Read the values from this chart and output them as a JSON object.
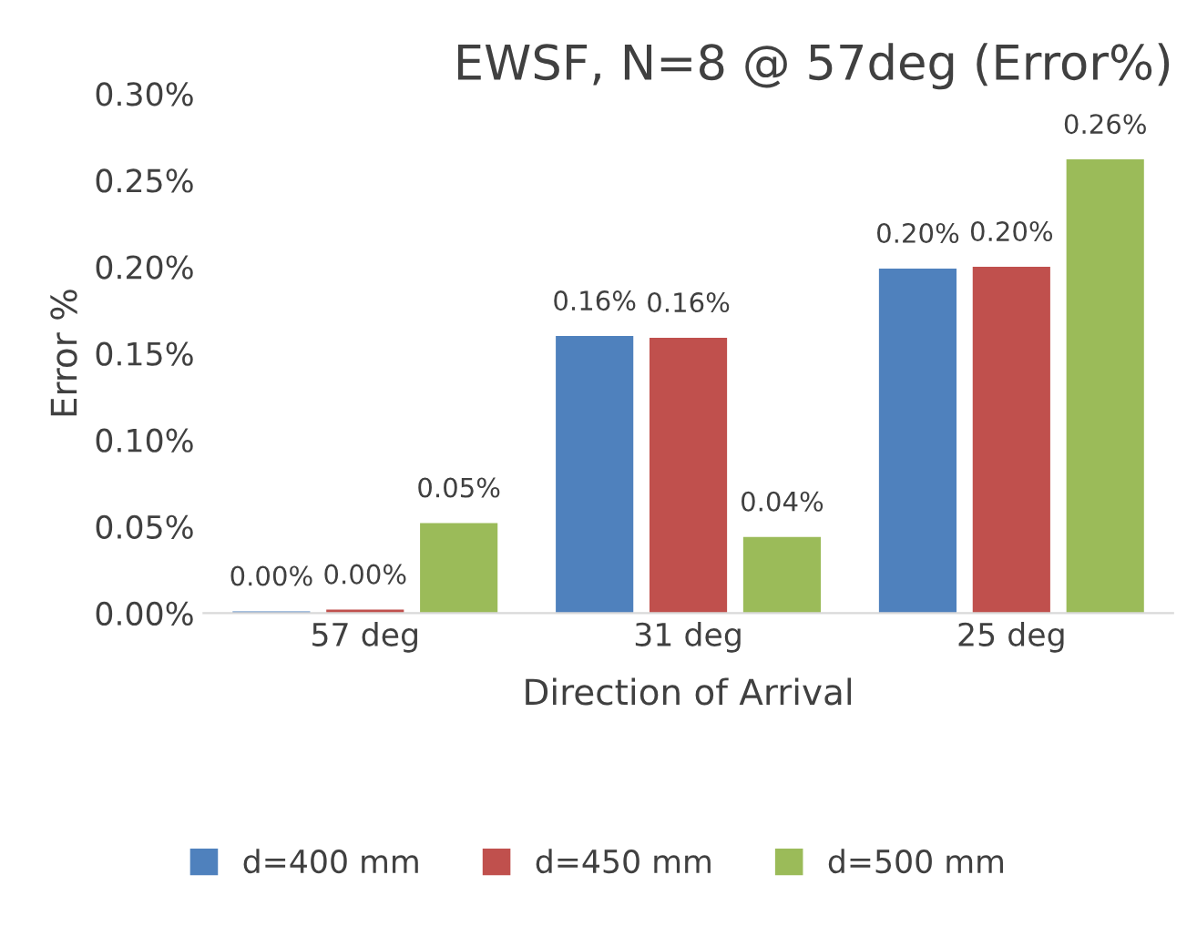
{
  "chart_data": {
    "type": "bar",
    "title": "EWSF, N=8 @ 57deg (Error%)",
    "xlabel": "Direction of Arrival",
    "ylabel": "Error %",
    "categories": [
      "57 deg",
      "31 deg",
      "25 deg"
    ],
    "series": [
      {
        "name": "d=400 mm",
        "color": "#4f81bd",
        "values": [
          0.001,
          0.16,
          0.199
        ],
        "value_labels": [
          "0.00%",
          "0.16%",
          "0.20%"
        ]
      },
      {
        "name": "d=450 mm",
        "color": "#c0504d",
        "values": [
          0.002,
          0.159,
          0.2
        ],
        "value_labels": [
          "0.00%",
          "0.16%",
          "0.20%"
        ]
      },
      {
        "name": "d=500 mm",
        "color": "#9bbb59",
        "values": [
          0.052,
          0.044,
          0.262
        ],
        "value_labels": [
          "0.05%",
          "0.04%",
          "0.26%"
        ]
      }
    ],
    "ylim": [
      0,
      0.3
    ],
    "yticks": [
      {
        "value": 0,
        "label": "0.00%"
      },
      {
        "value": 0.05,
        "label": "0.05%"
      },
      {
        "value": 0.1,
        "label": "0.10%"
      },
      {
        "value": 0.15,
        "label": "0.15%"
      },
      {
        "value": 0.2,
        "label": "0.20%"
      },
      {
        "value": 0.25,
        "label": "0.25%"
      },
      {
        "value": 0.3,
        "label": "0.30%"
      }
    ],
    "grid": false,
    "legend": "bottom"
  }
}
